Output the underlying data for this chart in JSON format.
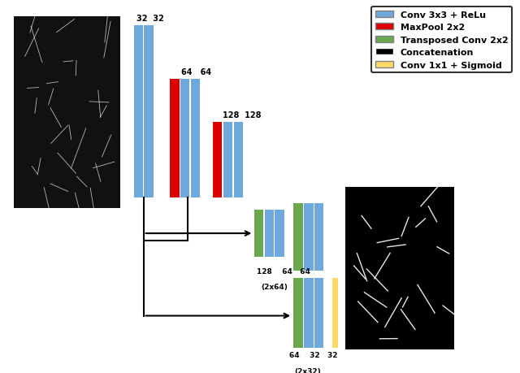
{
  "blue_color": "#6fa8dc",
  "red_color": "#dd0000",
  "green_color": "#6aa84f",
  "black_color": "#000000",
  "yellow_color": "#ffd966",
  "legend_items": [
    {
      "color": "#6fa8dc",
      "label": "Conv 3x3 + ReLu"
    },
    {
      "color": "#dd0000",
      "label": "MaxPool 2x2"
    },
    {
      "color": "#6aa84f",
      "label": "Transposed Conv 2x2"
    },
    {
      "color": "#000000",
      "label": "Concatenation"
    },
    {
      "color": "#ffd966",
      "label": "Conv 1x1 + Sigmoid"
    }
  ],
  "bg_color": "#ffffff",
  "bar_width": 0.018
}
